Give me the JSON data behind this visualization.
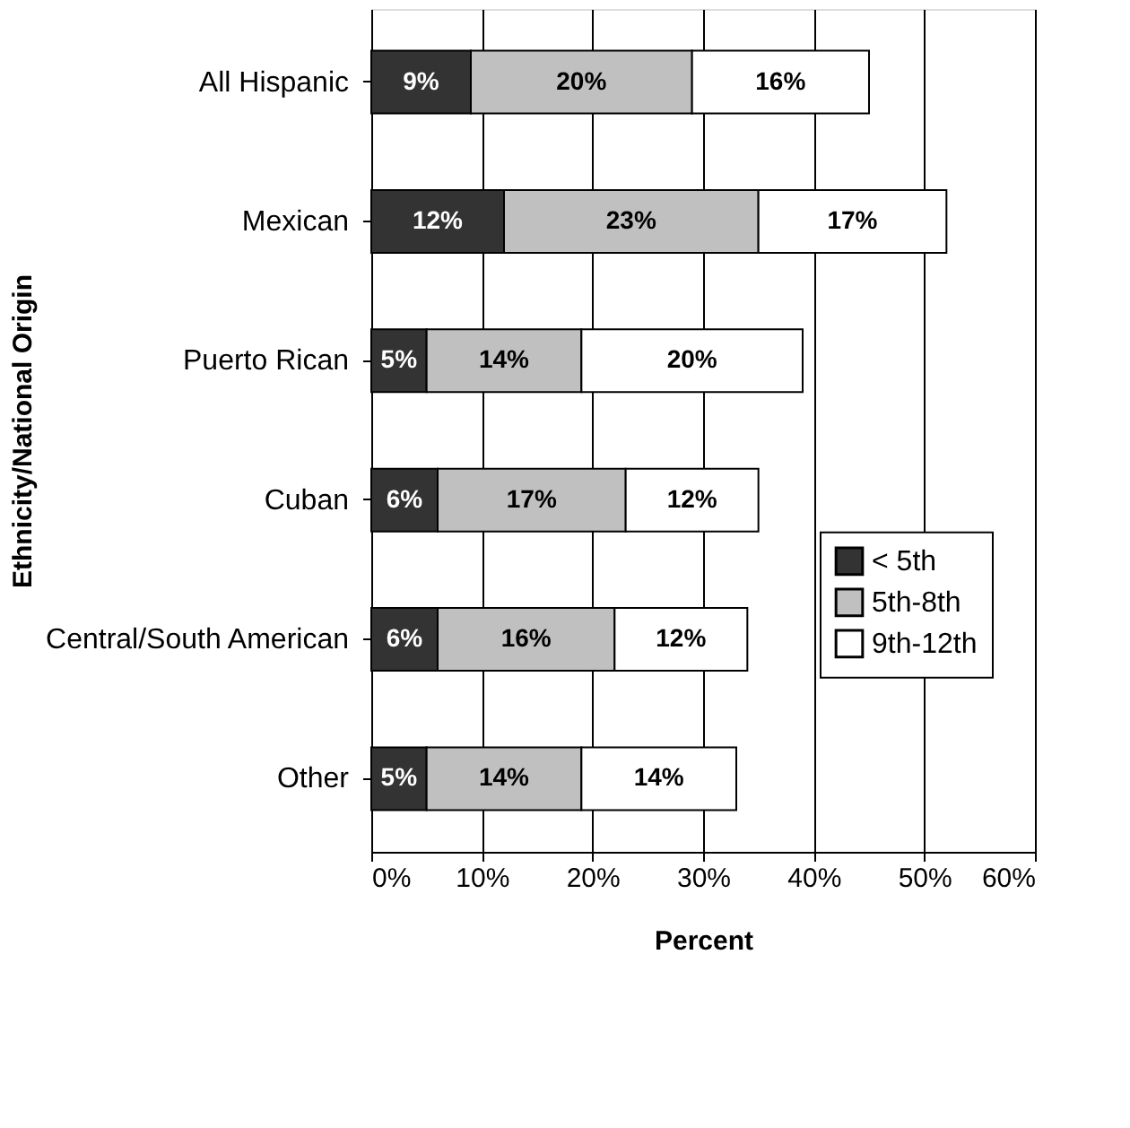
{
  "chart_data": {
    "type": "bar",
    "orientation": "horizontal",
    "stacked": true,
    "xlabel": "Percent",
    "ylabel": "Ethnicity/National Origin",
    "categories": [
      "All Hispanic",
      "Mexican",
      "Puerto Rican",
      "Cuban",
      "Central/South American",
      "Other"
    ],
    "series": [
      {
        "name": "< 5th",
        "color": "#333333",
        "values": [
          9,
          12,
          5,
          6,
          6,
          5
        ],
        "value_labels": [
          "9%",
          "12%",
          "5%",
          "6%",
          "6%",
          "5%"
        ]
      },
      {
        "name": "5th-8th",
        "color": "#c0c0c0",
        "values": [
          20,
          23,
          14,
          17,
          16,
          14
        ],
        "value_labels": [
          "20%",
          "23%",
          "14%",
          "17%",
          "16%",
          "14%"
        ]
      },
      {
        "name": "9th-12th",
        "color": "#ffffff",
        "values": [
          16,
          17,
          20,
          12,
          12,
          14
        ],
        "value_labels": [
          "16%",
          "17%",
          "20%",
          "12%",
          "12%",
          "14%"
        ]
      }
    ],
    "xlim": [
      0,
      60
    ],
    "xticks": [
      {
        "value": 0,
        "label": "0%"
      },
      {
        "value": 10,
        "label": "10%"
      },
      {
        "value": 20,
        "label": "20%"
      },
      {
        "value": 30,
        "label": "30%"
      },
      {
        "value": 40,
        "label": "40%"
      },
      {
        "value": 50,
        "label": "50%"
      },
      {
        "value": 60,
        "label": "60%"
      }
    ],
    "grid": "x",
    "legend": "right"
  }
}
